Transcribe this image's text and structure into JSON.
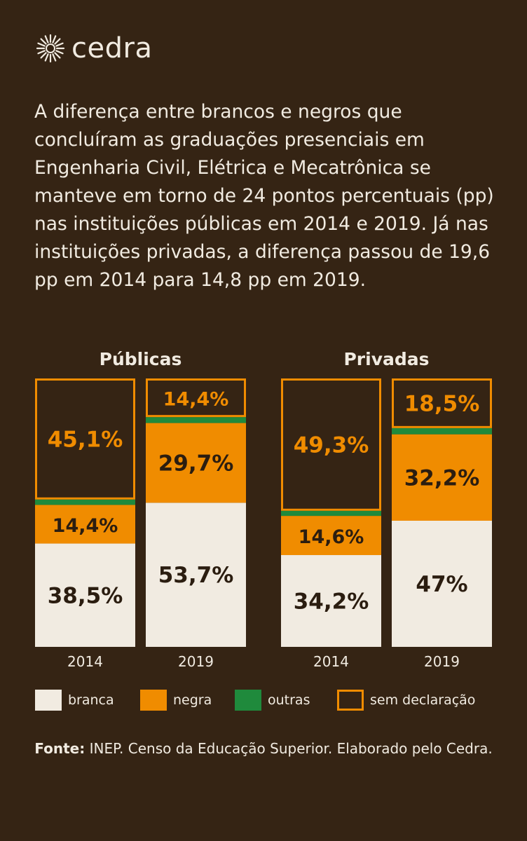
{
  "brand": {
    "name": "cedra"
  },
  "intro_text": "A diferença entre brancos e negros que concluíram as graduações presenciais em Engenharia Civil, Elétrica e Mecatrônica se manteve em torno de 24 pontos percentuais (pp) nas instituições públicas em 2014 e 2019. Já nas instituições privadas, a diferença passou de 19,6 pp em 2014 para 14,8 pp em 2019.",
  "colors": {
    "background": "#352414",
    "branca": "#f1ebe1",
    "negra": "#f08c00",
    "outras": "#1f8a3c",
    "sem_declaracao": "#f08c00",
    "text_light": "#f1ebe1",
    "text_dark": "#2b1d10"
  },
  "legend": [
    {
      "key": "branca",
      "label": "branca"
    },
    {
      "key": "negra",
      "label": "negra"
    },
    {
      "key": "outras",
      "label": "outras"
    },
    {
      "key": "sem_declaracao",
      "label": "sem declaração"
    }
  ],
  "chart_data": {
    "type": "bar",
    "stacked": true,
    "normalized_to": 100,
    "unit": "%",
    "series_order": [
      "branca",
      "negra",
      "outras",
      "sem_declaracao"
    ],
    "groups": [
      {
        "title": "Públicas",
        "bars": [
          {
            "year": "2014",
            "values": {
              "branca": 38.5,
              "negra": 14.4,
              "outras": 2.0,
              "sem_declaracao": 45.1
            },
            "labels": {
              "branca": "38,5%",
              "negra": "14,4%",
              "sem_declaracao": "45,1%"
            }
          },
          {
            "year": "2019",
            "values": {
              "branca": 53.7,
              "negra": 29.7,
              "outras": 2.2,
              "sem_declaracao": 14.4
            },
            "labels": {
              "branca": "53,7%",
              "negra": "29,7%",
              "sem_declaracao": "14,4%"
            }
          }
        ]
      },
      {
        "title": "Privadas",
        "bars": [
          {
            "year": "2014",
            "values": {
              "branca": 34.2,
              "negra": 14.6,
              "outras": 1.9,
              "sem_declaracao": 49.3
            },
            "labels": {
              "branca": "34,2%",
              "negra": "14,6%",
              "sem_declaracao": "49,3%"
            }
          },
          {
            "year": "2019",
            "values": {
              "branca": 47.0,
              "negra": 32.2,
              "outras": 2.3,
              "sem_declaracao": 18.5
            },
            "labels": {
              "branca": "47%",
              "negra": "32,2%",
              "sem_declaracao": "18,5%"
            }
          }
        ]
      }
    ]
  },
  "source": {
    "label": "Fonte:",
    "text": "INEP. Censo da Educação Superior. Elaborado pelo Cedra."
  }
}
